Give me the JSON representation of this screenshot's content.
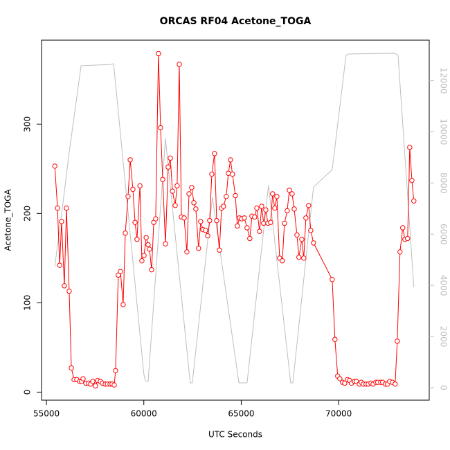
{
  "chart_data": {
    "type": "line",
    "title": "ORCAS RF04 Acetone_TOGA",
    "xlabel": "UTC Seconds",
    "ylabel": "Acetone_TOGA",
    "xlim": [
      54750,
      74650
    ],
    "xticks": [
      55000,
      60000,
      65000,
      70000
    ],
    "ylim": [
      -9,
      394
    ],
    "yticks": [
      0,
      100,
      200,
      300
    ],
    "y2lim": [
      -487,
      13580
    ],
    "y2ticks": [
      0,
      2000,
      4000,
      6000,
      8000,
      10000,
      12000
    ],
    "y2tick_color": "#bebebe",
    "series": [
      {
        "color": "#bebebe",
        "axis": "y2",
        "marker": "none",
        "x": [
          55430,
          55820,
          56170,
          56780,
          58300,
          58450,
          60000,
          60080,
          60220,
          61110,
          62380,
          62490,
          63520,
          64880,
          65300,
          66400,
          67540,
          67650,
          68710,
          69670,
          70380,
          70490,
          72870,
          73050,
          73860
        ],
        "values": [
          4730,
          7030,
          9200,
          12580,
          12630,
          12660,
          540,
          270,
          240,
          9740,
          190,
          190,
          7440,
          190,
          190,
          7900,
          190,
          190,
          7840,
          8520,
          12990,
          13040,
          13070,
          12990,
          3920
        ]
      },
      {
        "color": "#ff0000",
        "axis": "y",
        "marker": "circle",
        "x": [
          55430,
          55570,
          55680,
          55780,
          55920,
          56030,
          56170,
          56280,
          56420,
          56560,
          56710,
          56810,
          56880,
          57030,
          57170,
          57270,
          57380,
          57520,
          57630,
          57770,
          57880,
          58020,
          58130,
          58270,
          58370,
          58480,
          58550,
          58690,
          58800,
          58940,
          59050,
          59190,
          59300,
          59440,
          59550,
          59650,
          59800,
          59900,
          60010,
          60120,
          60220,
          60290,
          60400,
          60510,
          60610,
          60750,
          60860,
          60970,
          61110,
          61250,
          61360,
          61470,
          61610,
          61710,
          61820,
          61930,
          62070,
          62210,
          62320,
          62460,
          62570,
          62670,
          62810,
          62920,
          63030,
          63170,
          63280,
          63380,
          63490,
          63630,
          63740,
          63880,
          63990,
          64090,
          64230,
          64340,
          64450,
          64550,
          64700,
          64800,
          64910,
          65020,
          65160,
          65300,
          65440,
          65550,
          65690,
          65800,
          65940,
          66050,
          66150,
          66260,
          66370,
          66510,
          66610,
          66720,
          66830,
          66970,
          67110,
          67220,
          67360,
          67470,
          67610,
          67720,
          67860,
          67960,
          68110,
          68210,
          68320,
          68460,
          68570,
          68710,
          69670,
          69810,
          69950,
          70060,
          70200,
          70310,
          70450,
          70560,
          70660,
          70810,
          70910,
          71060,
          71160,
          71270,
          71410,
          71520,
          71660,
          71770,
          71910,
          72010,
          72160,
          72260,
          72400,
          72510,
          72620,
          72760,
          72900,
          73010,
          73150,
          73290,
          73400,
          73540,
          73650,
          73760,
          73860
        ],
        "values": [
          253,
          206,
          142,
          191,
          119,
          206,
          113,
          27,
          14,
          14,
          12,
          12,
          15,
          10,
          10,
          9,
          12,
          7,
          13,
          12,
          10,
          9,
          9,
          9,
          9,
          8,
          24,
          131,
          135,
          98,
          178,
          219,
          260,
          227,
          190,
          171,
          231,
          147,
          153,
          173,
          165,
          160,
          137,
          190,
          194,
          379,
          296,
          238,
          166,
          252,
          262,
          225,
          209,
          231,
          367,
          196,
          195,
          157,
          222,
          229,
          212,
          205,
          161,
          191,
          182,
          181,
          175,
          192,
          244,
          267,
          192,
          159,
          206,
          208,
          219,
          245,
          260,
          244,
          220,
          186,
          195,
          194,
          195,
          184,
          172,
          197,
          196,
          206,
          180,
          208,
          189,
          204,
          189,
          190,
          222,
          206,
          219,
          150,
          147,
          189,
          203,
          226,
          222,
          205,
          176,
          151,
          171,
          150,
          195,
          209,
          181,
          167,
          126,
          59,
          18,
          15,
          11,
          10,
          14,
          13,
          10,
          12,
          12,
          9,
          11,
          9,
          9,
          9,
          10,
          9,
          11,
          11,
          11,
          11,
          9,
          9,
          12,
          11,
          9,
          57,
          157,
          184,
          171,
          172,
          274,
          237,
          214
        ]
      }
    ]
  }
}
